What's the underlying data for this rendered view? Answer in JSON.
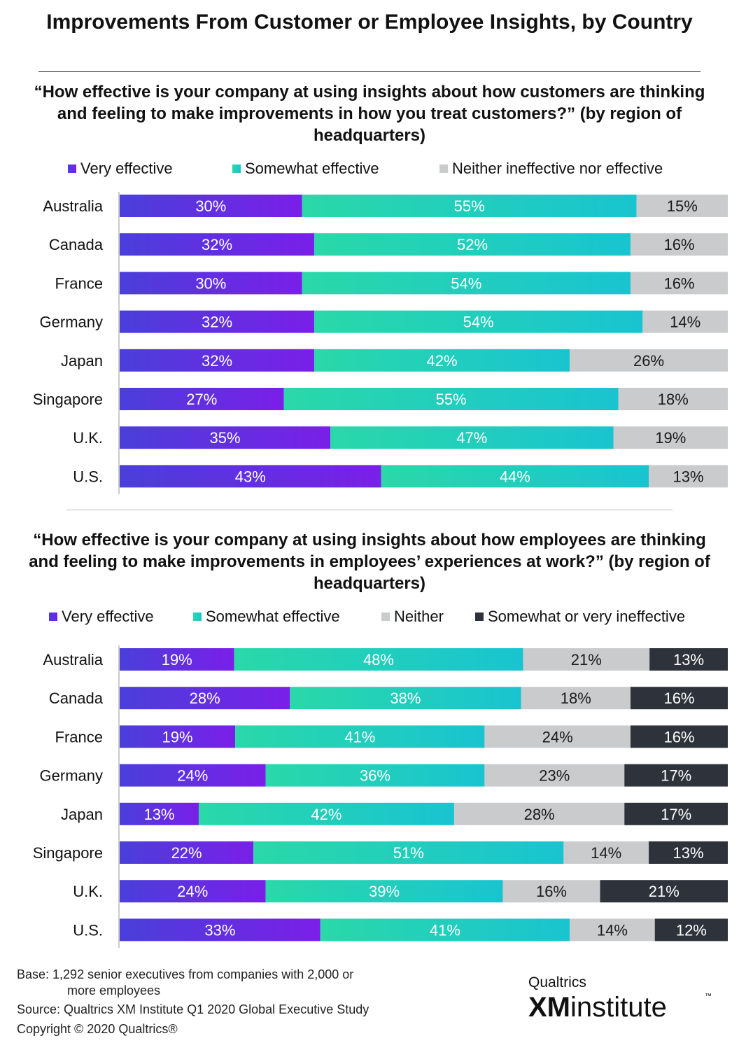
{
  "title": "Improvements From Customer or Employee Insights, by Country",
  "colors": {
    "very": [
      "#4a3fd9",
      "#7a1fe8"
    ],
    "somewhat": [
      "#2ad8a8",
      "#19c4d0"
    ],
    "neither": "#c9cbcd",
    "ineffective": "#2e333b"
  },
  "chart_data": [
    {
      "type": "bar",
      "stacked": true,
      "orientation": "horizontal",
      "title": "“How effective is your company at using insights about how customers are thinking and feeling to make improvements in how you treat customers?” (by region of headquarters)",
      "legend_position": "top",
      "xlim": [
        0,
        100
      ],
      "categories": [
        "Australia",
        "Canada",
        "France",
        "Germany",
        "Japan",
        "Singapore",
        "U.K.",
        "U.S."
      ],
      "series": [
        {
          "name": "Very effective",
          "color_key": "very",
          "values": [
            30,
            32,
            30,
            32,
            32,
            27,
            35,
            43
          ]
        },
        {
          "name": "Somewhat effective",
          "color_key": "somewhat",
          "values": [
            55,
            52,
            54,
            54,
            42,
            55,
            47,
            44
          ]
        },
        {
          "name": "Neither ineffective nor effective",
          "color_key": "neither",
          "values": [
            15,
            16,
            16,
            14,
            26,
            18,
            19,
            13
          ]
        }
      ]
    },
    {
      "type": "bar",
      "stacked": true,
      "orientation": "horizontal",
      "title": "“How effective is your company at using insights about how employees are thinking and feeling to make improvements in employees’ experiences at work?” (by region of headquarters)",
      "legend_position": "top",
      "xlim": [
        0,
        100
      ],
      "categories": [
        "Australia",
        "Canada",
        "France",
        "Germany",
        "Japan",
        "Singapore",
        "U.K.",
        "U.S."
      ],
      "series": [
        {
          "name": "Very effective",
          "color_key": "very",
          "values": [
            19,
            28,
            19,
            24,
            13,
            22,
            24,
            33
          ]
        },
        {
          "name": "Somewhat effective",
          "color_key": "somewhat",
          "values": [
            48,
            38,
            41,
            36,
            42,
            51,
            39,
            41
          ]
        },
        {
          "name": "Neither",
          "color_key": "neither",
          "values": [
            21,
            18,
            24,
            23,
            28,
            14,
            16,
            14
          ]
        },
        {
          "name": "Somewhat or very ineffective",
          "color_key": "ineffective",
          "values": [
            13,
            16,
            16,
            17,
            17,
            13,
            21,
            12
          ]
        }
      ]
    }
  ],
  "footer": {
    "base": "Base: 1,292 senior executives from companies with 2,000 or",
    "base_cont": "more employees",
    "source": "Source: Qualtrics XM Institute Q1 2020 Global Executive Study",
    "copyright": "Copyright © 2020 Qualtrics®"
  },
  "logo": {
    "brand": "Qualtrics",
    "xm": "XM",
    "institute": "institute",
    "tm": "™"
  }
}
